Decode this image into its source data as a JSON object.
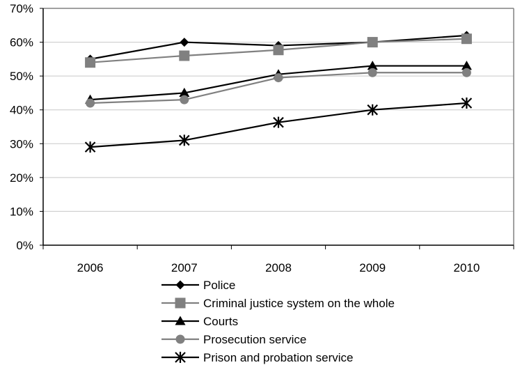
{
  "chart_data": {
    "type": "line",
    "title": "",
    "xlabel": "",
    "ylabel": "",
    "x": [
      "2006",
      "2007",
      "2008",
      "2009",
      "2010"
    ],
    "ylim": [
      0,
      70
    ],
    "y_ticks": [
      "0%",
      "10%",
      "20%",
      "30%",
      "40%",
      "50%",
      "60%",
      "70%"
    ],
    "grid": "horizontal",
    "legend_position": "bottom",
    "series": [
      {
        "name": "Police",
        "values": [
          55,
          60,
          59,
          60,
          62
        ],
        "color": "#000000",
        "marker": "diamond"
      },
      {
        "name": "Criminal justice system on the whole",
        "values": [
          54,
          56,
          57.7,
          60,
          61
        ],
        "color": "#808080",
        "marker": "square"
      },
      {
        "name": "Courts",
        "values": [
          43,
          45,
          50.5,
          53,
          53
        ],
        "color": "#000000",
        "marker": "triangle"
      },
      {
        "name": "Prosecution service",
        "values": [
          42,
          43,
          49.5,
          51,
          51
        ],
        "color": "#808080",
        "marker": "circle"
      },
      {
        "name": "Prison and probation service",
        "values": [
          29,
          31,
          36.3,
          40,
          42
        ],
        "color": "#000000",
        "marker": "star"
      }
    ]
  }
}
